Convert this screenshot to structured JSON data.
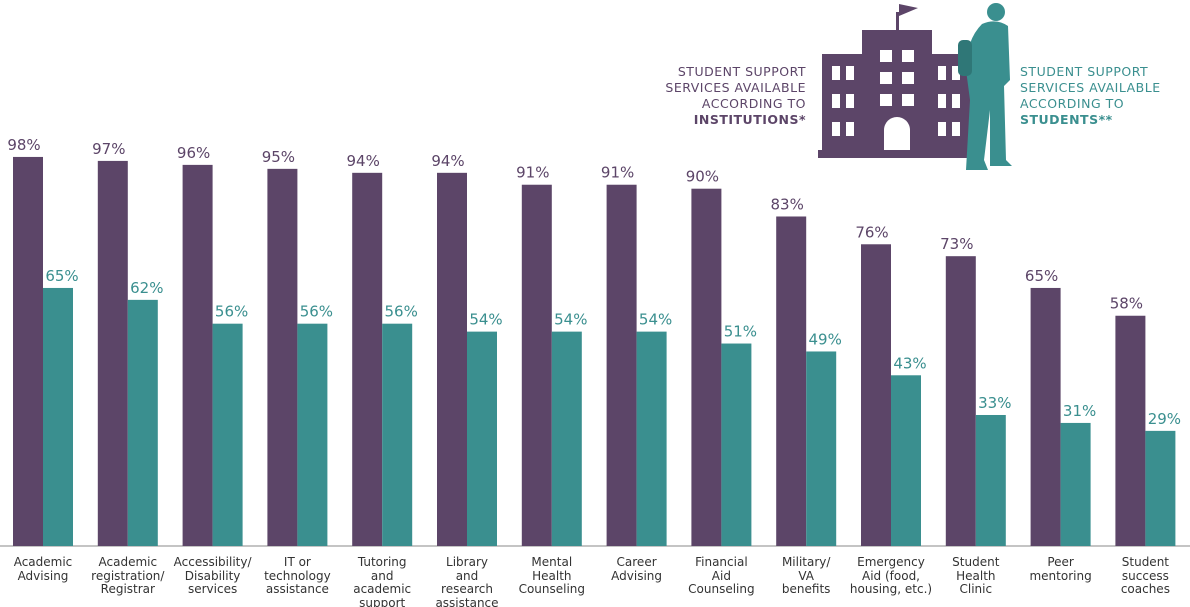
{
  "chart_data": {
    "type": "bar",
    "categories": [
      "Academic\nAdvising",
      "Academic\nregistration/\nRegistrar",
      "Accessibility/\nDisability\nservices",
      "IT or\ntechnology\nassistance",
      "Tutoring\nand\nacademic\nsupport",
      "Library\nand\nresearch\nassistance",
      "Mental\nHealth\nCounseling",
      "Career\nAdvising",
      "Financial\nAid\nCounseling",
      "Military/\nVA\nbenefits",
      "Emergency\nAid (food,\nhousing, etc.)",
      "Student\nHealth\nClinic",
      "Peer\nmentoring",
      "Student\nsuccess\ncoaches"
    ],
    "series": [
      {
        "name": "INSTITUTIONS*",
        "legend_text": "STUDENT SUPPORT\nSERVICES AVAILABLE\nACCORDING TO",
        "color": "#5c4568",
        "values": [
          98,
          97,
          96,
          95,
          94,
          94,
          91,
          91,
          90,
          83,
          76,
          73,
          65,
          58
        ],
        "value_labels": [
          "98%",
          "97%",
          "96%",
          "95%",
          "94%",
          "94%",
          "91%",
          "91%",
          "90%",
          "83%",
          "76%",
          "73%",
          "65%",
          "58%"
        ]
      },
      {
        "name": "STUDENTS**",
        "legend_text": "STUDENT SUPPORT\nSERVICES AVAILABLE\nACCORDING TO",
        "color": "#3a8f8f",
        "values": [
          65,
          62,
          56,
          56,
          56,
          54,
          54,
          54,
          51,
          49,
          43,
          33,
          31,
          29
        ],
        "value_labels": [
          "65%",
          "62%",
          "56%",
          "56%",
          "56%",
          "54%",
          "54%",
          "54%",
          "51%",
          "49%",
          "43%",
          "33%",
          "31%",
          "29%"
        ]
      }
    ],
    "ylim": [
      0,
      100
    ]
  }
}
